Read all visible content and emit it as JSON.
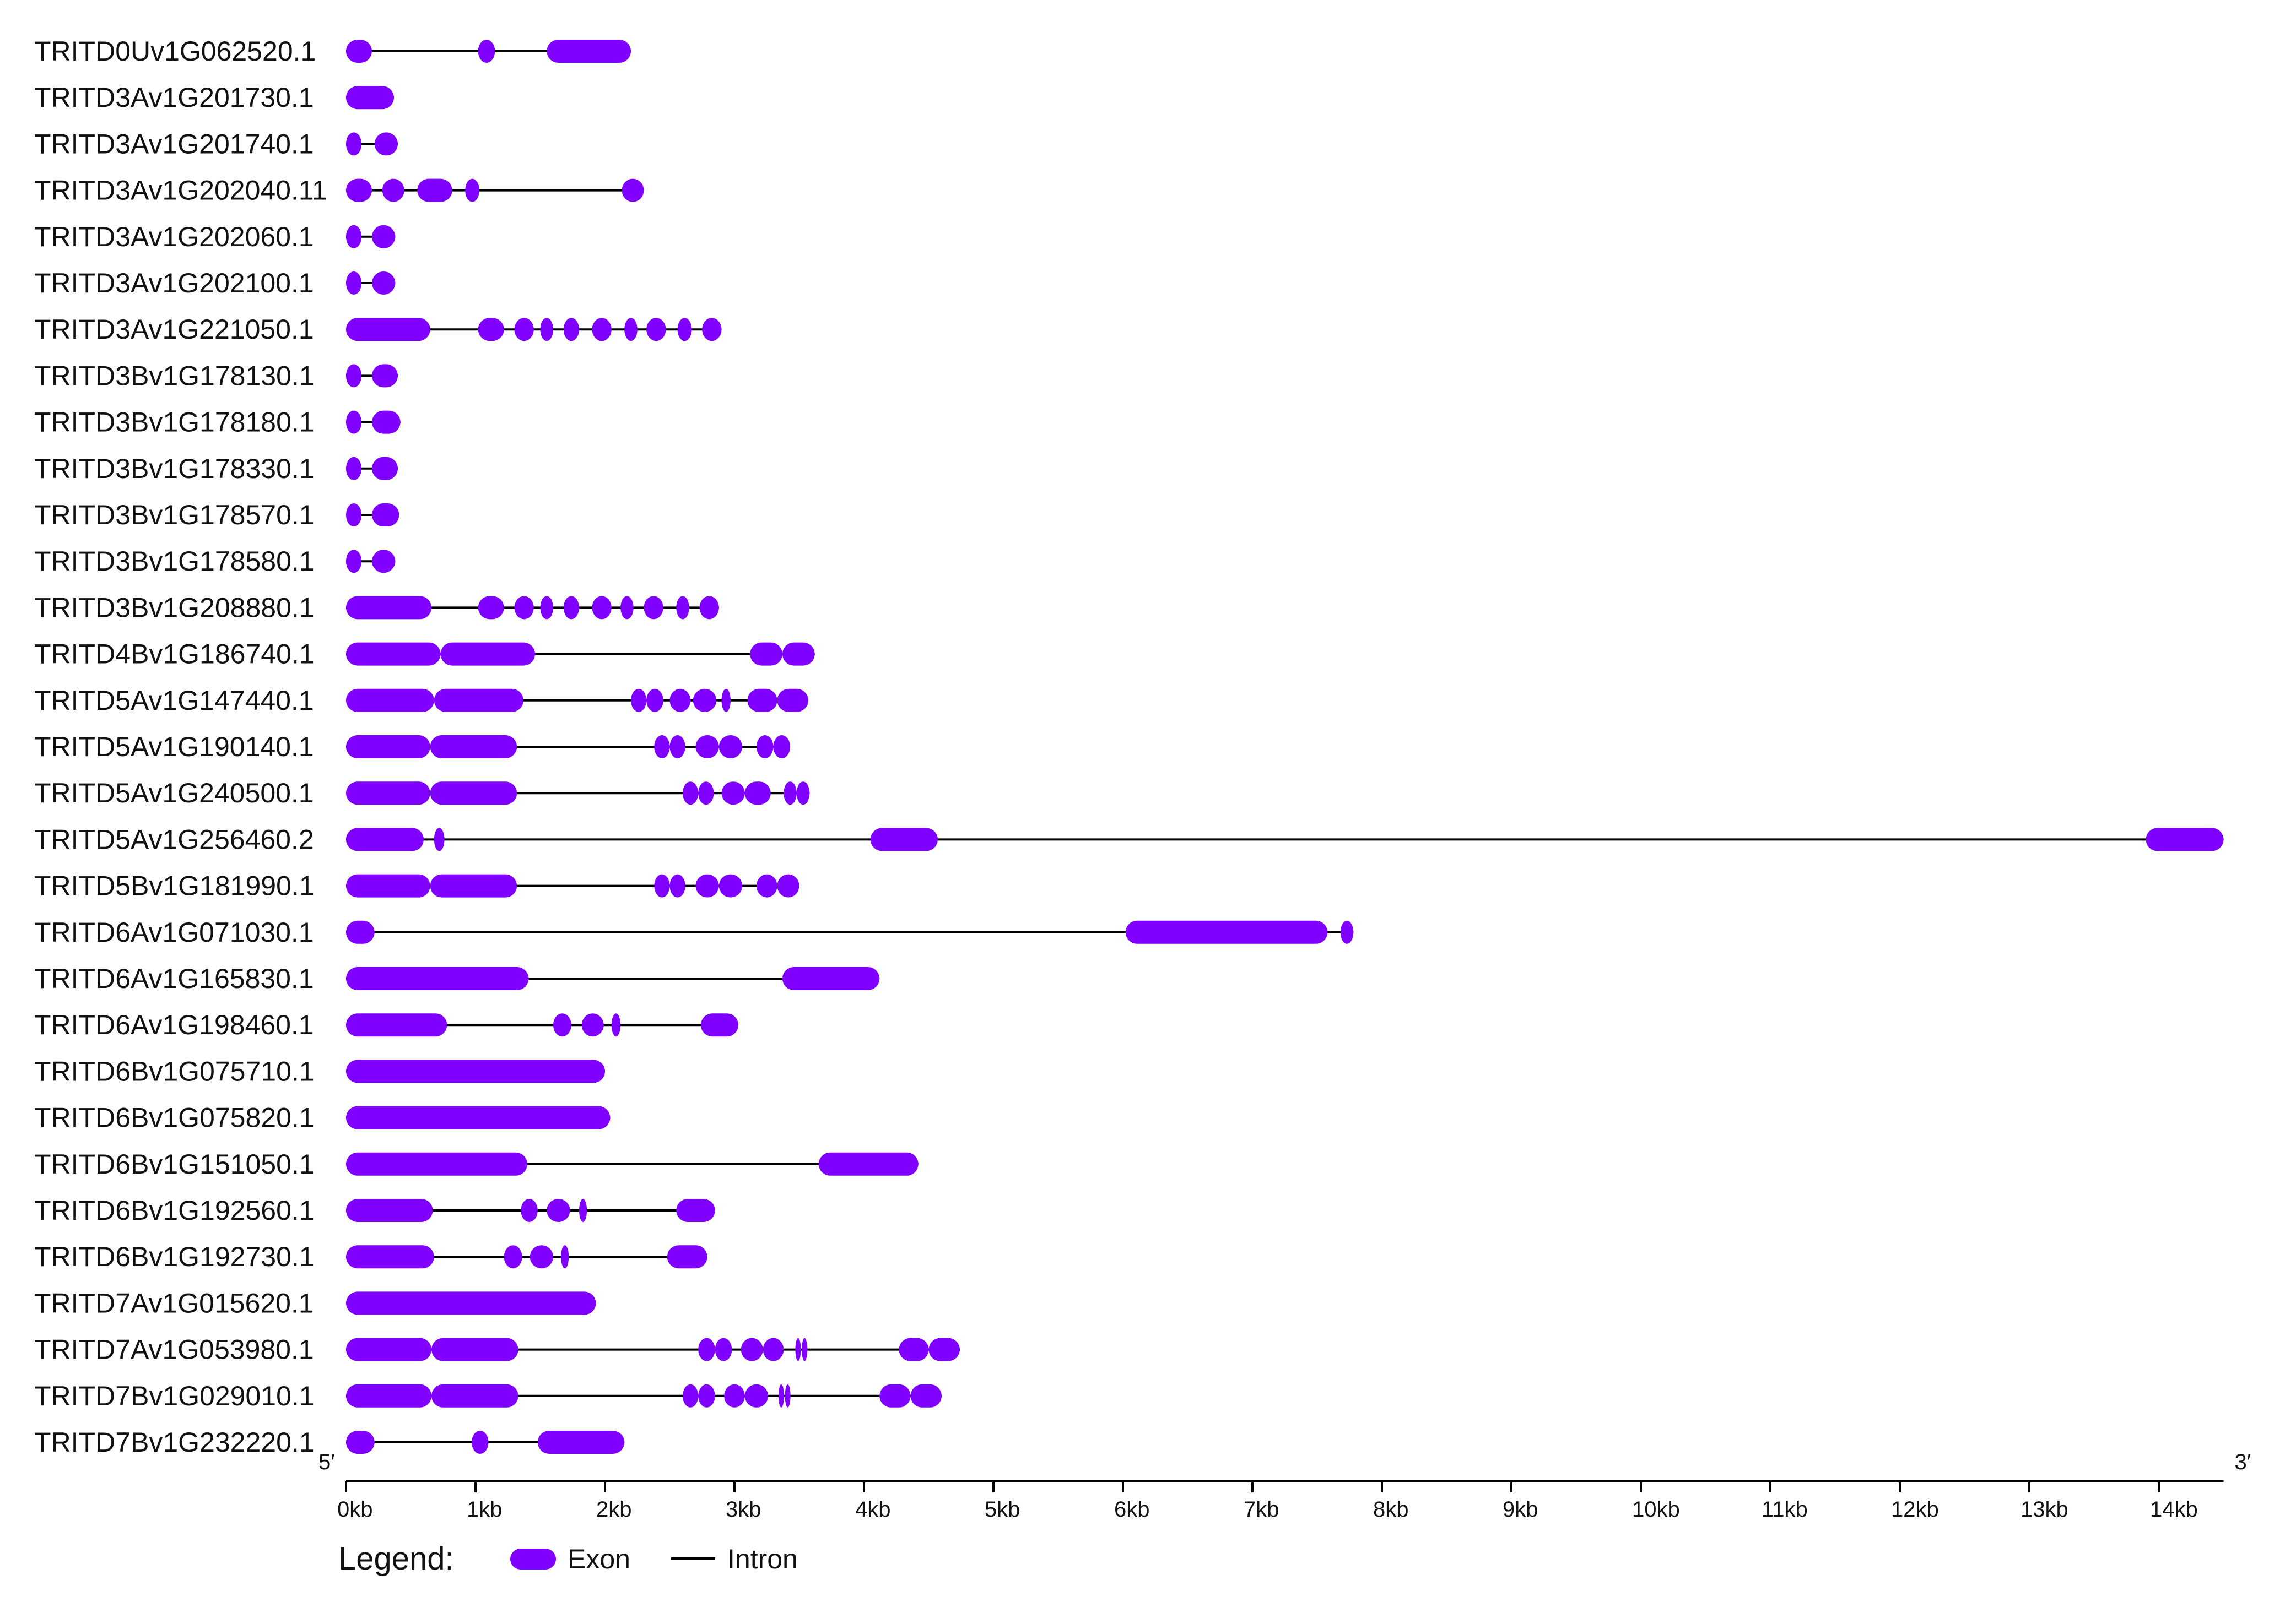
{
  "colors": {
    "exon": "#7f00ff",
    "intron": "#000000",
    "axis": "#000000",
    "text": "#111111"
  },
  "axis": {
    "left_end_label": "5′",
    "right_end_label": "3′",
    "ticks": [
      "0kb",
      "1kb",
      "2kb",
      "3kb",
      "4kb",
      "5kb",
      "6kb",
      "7kb",
      "8kb",
      "9kb",
      "10kb",
      "11kb",
      "12kb",
      "13kb",
      "14kb"
    ]
  },
  "legend": {
    "title": "Legend:",
    "exon_label": "Exon",
    "intron_label": "Intron"
  },
  "chart_data": {
    "type": "gene-structure",
    "units": "kb",
    "xlim": [
      0,
      14.5
    ],
    "genes": [
      {
        "name": "TRITD0Uv1G062520.1",
        "span": [
          0,
          2.2
        ],
        "exons": [
          [
            0,
            0.2
          ],
          [
            1.02,
            1.15
          ],
          [
            1.55,
            2.2
          ]
        ]
      },
      {
        "name": "TRITD3Av1G201730.1",
        "span": [
          0,
          0.37
        ],
        "exons": [
          [
            0,
            0.37
          ]
        ]
      },
      {
        "name": "TRITD3Av1G201740.1",
        "span": [
          0,
          0.4
        ],
        "exons": [
          [
            0,
            0.12
          ],
          [
            0.22,
            0.4
          ]
        ]
      },
      {
        "name": "TRITD3Av1G202040.11",
        "span": [
          0,
          2.3
        ],
        "exons": [
          [
            0,
            0.2
          ],
          [
            0.28,
            0.45
          ],
          [
            0.55,
            0.82
          ],
          [
            0.92,
            1.03
          ],
          [
            2.13,
            2.3
          ]
        ]
      },
      {
        "name": "TRITD3Av1G202060.1",
        "span": [
          0,
          0.38
        ],
        "exons": [
          [
            0,
            0.12
          ],
          [
            0.2,
            0.38
          ]
        ]
      },
      {
        "name": "TRITD3Av1G202100.1",
        "span": [
          0,
          0.38
        ],
        "exons": [
          [
            0,
            0.12
          ],
          [
            0.2,
            0.38
          ]
        ]
      },
      {
        "name": "TRITD3Av1G221050.1",
        "span": [
          0,
          2.9
        ],
        "exons": [
          [
            0,
            0.65
          ],
          [
            1.02,
            1.22
          ],
          [
            1.3,
            1.45
          ],
          [
            1.5,
            1.6
          ],
          [
            1.68,
            1.8
          ],
          [
            1.9,
            2.05
          ],
          [
            2.15,
            2.25
          ],
          [
            2.32,
            2.47
          ],
          [
            2.56,
            2.67
          ],
          [
            2.75,
            2.9
          ]
        ]
      },
      {
        "name": "TRITD3Bv1G178130.1",
        "span": [
          0,
          0.4
        ],
        "exons": [
          [
            0,
            0.12
          ],
          [
            0.2,
            0.4
          ]
        ]
      },
      {
        "name": "TRITD3Bv1G178180.1",
        "span": [
          0,
          0.42
        ],
        "exons": [
          [
            0,
            0.12
          ],
          [
            0.2,
            0.42
          ]
        ]
      },
      {
        "name": "TRITD3Bv1G178330.1",
        "span": [
          0,
          0.4
        ],
        "exons": [
          [
            0,
            0.12
          ],
          [
            0.2,
            0.4
          ]
        ]
      },
      {
        "name": "TRITD3Bv1G178570.1",
        "span": [
          0,
          0.41
        ],
        "exons": [
          [
            0,
            0.12
          ],
          [
            0.2,
            0.41
          ]
        ]
      },
      {
        "name": "TRITD3Bv1G178580.1",
        "span": [
          0,
          0.38
        ],
        "exons": [
          [
            0,
            0.12
          ],
          [
            0.2,
            0.38
          ]
        ]
      },
      {
        "name": "TRITD3Bv1G208880.1",
        "span": [
          0,
          2.88
        ],
        "exons": [
          [
            0,
            0.66
          ],
          [
            1.02,
            1.22
          ],
          [
            1.3,
            1.45
          ],
          [
            1.5,
            1.6
          ],
          [
            1.68,
            1.8
          ],
          [
            1.9,
            2.05
          ],
          [
            2.12,
            2.22
          ],
          [
            2.3,
            2.45
          ],
          [
            2.55,
            2.65
          ],
          [
            2.73,
            2.88
          ]
        ]
      },
      {
        "name": "TRITD4Bv1G186740.1",
        "span": [
          0,
          3.62
        ],
        "exons": [
          [
            0,
            0.73
          ],
          [
            0.73,
            1.46
          ],
          [
            3.12,
            3.37
          ],
          [
            3.37,
            3.62
          ]
        ]
      },
      {
        "name": "TRITD5Av1G147440.1",
        "span": [
          0,
          3.57
        ],
        "exons": [
          [
            0,
            0.68
          ],
          [
            0.68,
            1.37
          ],
          [
            2.2,
            2.32
          ],
          [
            2.32,
            2.45
          ],
          [
            2.5,
            2.66
          ],
          [
            2.68,
            2.86
          ],
          [
            2.9,
            2.97
          ],
          [
            3.1,
            3.33
          ],
          [
            3.33,
            3.57
          ]
        ]
      },
      {
        "name": "TRITD5Av1G190140.1",
        "span": [
          0,
          3.43
        ],
        "exons": [
          [
            0,
            0.65
          ],
          [
            0.65,
            1.32
          ],
          [
            2.38,
            2.5
          ],
          [
            2.5,
            2.62
          ],
          [
            2.7,
            2.88
          ],
          [
            2.88,
            3.06
          ],
          [
            3.17,
            3.3
          ],
          [
            3.3,
            3.43
          ]
        ]
      },
      {
        "name": "TRITD5Av1G240500.1",
        "span": [
          0,
          3.58
        ],
        "exons": [
          [
            0,
            0.65
          ],
          [
            0.65,
            1.32
          ],
          [
            2.6,
            2.72
          ],
          [
            2.72,
            2.84
          ],
          [
            2.9,
            3.08
          ],
          [
            3.08,
            3.28
          ],
          [
            3.38,
            3.48
          ],
          [
            3.48,
            3.58
          ]
        ]
      },
      {
        "name": "TRITD5Av1G256460.2",
        "span": [
          0,
          14.5
        ],
        "exons": [
          [
            0,
            0.6
          ],
          [
            0.68,
            0.76
          ],
          [
            4.05,
            4.57
          ],
          [
            13.9,
            14.5
          ]
        ]
      },
      {
        "name": "TRITD5Bv1G181990.1",
        "span": [
          0,
          3.5
        ],
        "exons": [
          [
            0,
            0.65
          ],
          [
            0.65,
            1.32
          ],
          [
            2.38,
            2.5
          ],
          [
            2.5,
            2.62
          ],
          [
            2.7,
            2.88
          ],
          [
            2.88,
            3.06
          ],
          [
            3.17,
            3.33
          ],
          [
            3.33,
            3.5
          ]
        ]
      },
      {
        "name": "TRITD6Av1G071030.1",
        "span": [
          0,
          7.78
        ],
        "exons": [
          [
            0,
            0.22
          ],
          [
            6.02,
            7.58
          ],
          [
            7.68,
            7.78
          ]
        ]
      },
      {
        "name": "TRITD6Av1G165830.1",
        "span": [
          0,
          4.12
        ],
        "exons": [
          [
            0,
            1.41
          ],
          [
            3.37,
            4.12
          ]
        ]
      },
      {
        "name": "TRITD6Av1G198460.1",
        "span": [
          0,
          3.03
        ],
        "exons": [
          [
            0,
            0.78
          ],
          [
            1.6,
            1.74
          ],
          [
            1.82,
            1.99
          ],
          [
            2.05,
            2.12
          ],
          [
            2.74,
            3.03
          ]
        ]
      },
      {
        "name": "TRITD6Bv1G075710.1",
        "span": [
          0,
          2.0
        ],
        "exons": [
          [
            0,
            2.0
          ]
        ]
      },
      {
        "name": "TRITD6Bv1G075820.1",
        "span": [
          0,
          2.04
        ],
        "exons": [
          [
            0,
            2.04
          ]
        ]
      },
      {
        "name": "TRITD6Bv1G151050.1",
        "span": [
          0,
          4.42
        ],
        "exons": [
          [
            0,
            1.4
          ],
          [
            3.65,
            4.42
          ]
        ]
      },
      {
        "name": "TRITD6Bv1G192560.1",
        "span": [
          0,
          2.85
        ],
        "exons": [
          [
            0,
            0.67
          ],
          [
            1.35,
            1.48
          ],
          [
            1.55,
            1.73
          ],
          [
            1.8,
            1.86
          ],
          [
            2.55,
            2.85
          ]
        ]
      },
      {
        "name": "TRITD6Bv1G192730.1",
        "span": [
          0,
          2.79
        ],
        "exons": [
          [
            0,
            0.68
          ],
          [
            1.22,
            1.36
          ],
          [
            1.42,
            1.6
          ],
          [
            1.66,
            1.72
          ],
          [
            2.48,
            2.79
          ]
        ]
      },
      {
        "name": "TRITD7Av1G015620.1",
        "span": [
          0,
          1.93
        ],
        "exons": [
          [
            0,
            1.93
          ]
        ]
      },
      {
        "name": "TRITD7Av1G053980.1",
        "span": [
          0,
          4.74
        ],
        "exons": [
          [
            0,
            0.66
          ],
          [
            0.66,
            1.33
          ],
          [
            2.72,
            2.85
          ],
          [
            2.85,
            2.98
          ],
          [
            3.05,
            3.22
          ],
          [
            3.22,
            3.38
          ],
          [
            3.47,
            3.5
          ],
          [
            3.52,
            3.55
          ],
          [
            4.27,
            4.5
          ],
          [
            4.5,
            4.74
          ]
        ]
      },
      {
        "name": "TRITD7Bv1G029010.1",
        "span": [
          0,
          4.6
        ],
        "exons": [
          [
            0,
            0.66
          ],
          [
            0.66,
            1.33
          ],
          [
            2.6,
            2.72
          ],
          [
            2.72,
            2.85
          ],
          [
            2.92,
            3.08
          ],
          [
            3.08,
            3.26
          ],
          [
            3.34,
            3.37
          ],
          [
            3.39,
            3.42
          ],
          [
            4.12,
            4.36
          ],
          [
            4.36,
            4.6
          ]
        ]
      },
      {
        "name": "TRITD7Bv1G232220.1",
        "span": [
          0,
          2.15
        ],
        "exons": [
          [
            0,
            0.22
          ],
          [
            0.97,
            1.1
          ],
          [
            1.48,
            2.15
          ]
        ]
      }
    ]
  }
}
